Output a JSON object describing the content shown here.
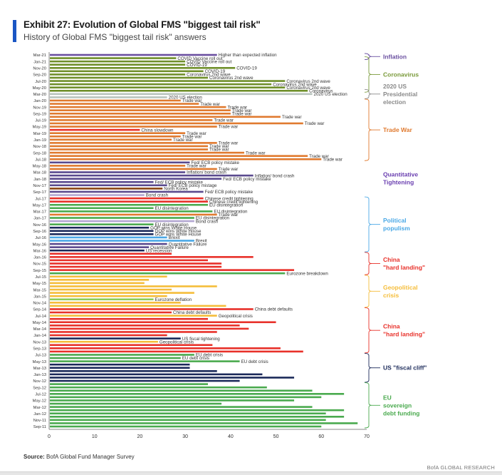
{
  "header": {
    "title": "Exhibit 27: Evolution of Global FMS \"biggest tail risk\"",
    "subtitle": "History of Global FMS \"biggest tail risk\" answers"
  },
  "footer": {
    "source_label": "Source:",
    "source_text": "BofA Global Fund Manager Survey",
    "brand": "BofA GLOBAL RESEARCH"
  },
  "colors": {
    "accent": "#1a56c4",
    "inflation": "#6a4fa0",
    "coronavirus": "#6f8f2a",
    "election": "#b8c4bd",
    "trade_war": "#e07a2f",
    "china_slowdown": "#e8312a",
    "qt": "#5a4a8e",
    "north_korea": "#8b4513",
    "bond_crash": "#b3a7d1",
    "eu": "#4aaa4e",
    "gop": "#1b2a5a",
    "brexit": "#4aa8e6",
    "quant_failure": "#5a4a8e",
    "china": "#e8312a",
    "geo": "#f5bd3a",
    "eurozone_deflation": "#8ccc5a",
    "us_fiscal": "#1b2a5a",
    "eu_debt": "#4aaa4e"
  },
  "chart_data": {
    "type": "bar",
    "orientation": "horizontal",
    "title": "Exhibit 27: Evolution of Global FMS \"biggest tail risk\"",
    "subtitle": "History of Global FMS \"biggest tail risk\" answers",
    "xlabel": "",
    "ylabel": "",
    "xlim": [
      0,
      70
    ],
    "xticks": [
      0,
      10,
      20,
      30,
      40,
      50,
      60,
      70
    ],
    "grid": false,
    "ytick_labels": [
      "Mar-21",
      "Jan-21",
      "Nov-20",
      "Sep-20",
      "Jul-20",
      "May-20",
      "Mar-20",
      "Jan-20",
      "Nov-19",
      "Sep-19",
      "Jul-19",
      "May-19",
      "Mar-19",
      "Jan-19",
      "Nov-18",
      "Sep-18",
      "Jul-18",
      "May-18",
      "Mar-18",
      "Jan-18",
      "Nov-17",
      "Sep-17",
      "Jul-17",
      "May-17",
      "Mar-17",
      "Jan-17",
      "Nov-16",
      "Sep-16",
      "Jul-16",
      "May-16",
      "Mar-16",
      "Jan-16",
      "Nov-15",
      "Sep-15",
      "Jul-15",
      "May-15",
      "Mar-15",
      "Jan-15",
      "Nov-14",
      "Sep-14",
      "Jul-14",
      "May-14",
      "Mar-14",
      "Jan-14",
      "Nov-13",
      "Sep-13",
      "Jul-13",
      "May-13",
      "Mar-13",
      "Jan-13",
      "Nov-12",
      "Sep-12",
      "Jul-12",
      "May-12",
      "Mar-12",
      "Jan-12",
      "Nov-11",
      "Sep-11"
    ],
    "bars": [
      {
        "month": "Mar-21",
        "value": 37,
        "risk": "inflation",
        "label": "Higher than expected inflation"
      },
      {
        "month": "Feb-21",
        "value": 28,
        "risk": "coronavirus",
        "label": "COVID Vaccine roll out"
      },
      {
        "month": "Jan-21",
        "value": 30,
        "risk": "coronavirus",
        "label": "COVID Vaccine roll out"
      },
      {
        "month": "Dec-20",
        "value": 30,
        "risk": "coronavirus",
        "label": "COVID-19"
      },
      {
        "month": "Nov-20",
        "value": 41,
        "risk": "coronavirus",
        "label": "COVID-19"
      },
      {
        "month": "Oct-20",
        "value": 34,
        "risk": "coronavirus",
        "label": "COVID-19"
      },
      {
        "month": "Sep-20",
        "value": 30,
        "risk": "coronavirus",
        "label": "Coronavirus 2nd wave"
      },
      {
        "month": "Aug-20",
        "value": 35,
        "risk": "coronavirus",
        "label": "Coronavirus 2nd wave"
      },
      {
        "month": "Jul-20",
        "value": 52,
        "risk": "coronavirus",
        "label": "Coronavirus 2nd wave"
      },
      {
        "month": "Jun-20",
        "value": 49,
        "risk": "coronavirus",
        "label": "Coronavirus 2nd wave"
      },
      {
        "month": "May-20",
        "value": 52,
        "risk": "coronavirus",
        "label": "Coronavirus 2nd wave"
      },
      {
        "month": "Apr-20",
        "value": 57,
        "risk": "coronavirus",
        "label": "Coronavirus"
      },
      {
        "month": "Mar-20",
        "value": 58,
        "risk": "election",
        "label": "2020 US election"
      },
      {
        "month": "Feb-20",
        "value": 26,
        "risk": "election",
        "label": "2020 US election"
      },
      {
        "month": "Jan-20",
        "value": 29,
        "risk": "trade_war",
        "label": "Trade war"
      },
      {
        "month": "Dec-19",
        "value": 33,
        "risk": "trade_war",
        "label": "Trade war"
      },
      {
        "month": "Nov-19",
        "value": 39,
        "risk": "trade_war",
        "label": "Trade war"
      },
      {
        "month": "Oct-19",
        "value": 40,
        "risk": "trade_war",
        "label": "Trade war"
      },
      {
        "month": "Sep-19",
        "value": 40,
        "risk": "trade_war",
        "label": "Trade war"
      },
      {
        "month": "Aug-19",
        "value": 51,
        "risk": "trade_war",
        "label": "Trade war"
      },
      {
        "month": "Jul-19",
        "value": 36,
        "risk": "trade_war",
        "label": "Trade war"
      },
      {
        "month": "Jun-19",
        "value": 56,
        "risk": "trade_war",
        "label": "Trade war"
      },
      {
        "month": "May-19",
        "value": 37,
        "risk": "trade_war",
        "label": "Trade war"
      },
      {
        "month": "Apr-19",
        "value": 20,
        "risk": "china_slowdown",
        "label": "China slowdown"
      },
      {
        "month": "Mar-19",
        "value": 30,
        "risk": "trade_war",
        "label": "Trade war"
      },
      {
        "month": "Feb-19",
        "value": 29,
        "risk": "trade_war",
        "label": "Trade war"
      },
      {
        "month": "Jan-19",
        "value": 27,
        "risk": "trade_war",
        "label": "Trade war"
      },
      {
        "month": "Dec-18",
        "value": 37,
        "risk": "trade_war",
        "label": "Trade war"
      },
      {
        "month": "Nov-18",
        "value": 35,
        "risk": "trade_war",
        "label": "Trade war"
      },
      {
        "month": "Oct-18",
        "value": 35,
        "risk": "trade_war",
        "label": "Trade war"
      },
      {
        "month": "Sep-18",
        "value": 43,
        "risk": "trade_war",
        "label": "Trade war"
      },
      {
        "month": "Aug-18",
        "value": 57,
        "risk": "trade_war",
        "label": "Trade war"
      },
      {
        "month": "Jul-18",
        "value": 60,
        "risk": "trade_war",
        "label": "Trade war"
      },
      {
        "month": "Jun-18",
        "value": 31,
        "risk": "qt",
        "label": "Fed/ ECB policy mistake"
      },
      {
        "month": "May-18",
        "value": 30,
        "risk": "trade_war",
        "label": "Trade war"
      },
      {
        "month": "Apr-18",
        "value": 37,
        "risk": "trade_war",
        "label": "Trade war"
      },
      {
        "month": "Mar-18",
        "value": 30,
        "risk": "qt",
        "label": "Inflation/ bond crash"
      },
      {
        "month": "Feb-18",
        "value": 45,
        "risk": "qt",
        "label": "Inflation/ bond crash"
      },
      {
        "month": "Jan-18",
        "value": 38,
        "risk": "qt",
        "label": "Fed/ ECB policy mistake"
      },
      {
        "month": "Dec-17",
        "value": 23,
        "risk": "qt",
        "label": "Fed/ ECB policy mistake"
      },
      {
        "month": "Nov-17",
        "value": 26,
        "risk": "qt",
        "label": "Fed/ ECB policy mistage"
      },
      {
        "month": "Oct-17",
        "value": 25,
        "risk": "north_korea",
        "label": "North Korea"
      },
      {
        "month": "Sep-17",
        "value": 34,
        "risk": "qt",
        "label": "Fed/ ECB policy mistake"
      },
      {
        "month": "Aug-17",
        "value": 21,
        "risk": "bond_crash",
        "label": "Bond crash"
      },
      {
        "month": "Jul-17",
        "value": 34,
        "risk": "china",
        "label": "Chinese credit tightening"
      },
      {
        "month": "Jun-17",
        "value": 35,
        "risk": "china",
        "label": "Chinese credit tightening"
      },
      {
        "month": "May-17",
        "value": 35,
        "risk": "eu",
        "label": "EU disintegration"
      },
      {
        "month": "Apr-17",
        "value": 23,
        "risk": "eu",
        "label": "EU disintegration"
      },
      {
        "month": "Mar-17",
        "value": 36,
        "risk": "eu",
        "label": "EU disintegration"
      },
      {
        "month": "Feb-17",
        "value": 37,
        "risk": "trade_war",
        "label": "Trade war"
      },
      {
        "month": "Jan-17",
        "value": 32,
        "risk": "eu",
        "label": "EU disintegration"
      },
      {
        "month": "Dec-16",
        "value": 32,
        "risk": "bond_crash",
        "label": "Bond crash"
      },
      {
        "month": "Nov-16",
        "value": 23,
        "risk": "eu",
        "label": "EU disintegration"
      },
      {
        "month": "Oct-16",
        "value": 22,
        "risk": "gop",
        "label": "GOP wins White House"
      },
      {
        "month": "Sep-16",
        "value": 23,
        "risk": "gop",
        "label": "GOP wins White House"
      },
      {
        "month": "Aug-16",
        "value": 23,
        "risk": "gop",
        "label": "GOP wins White House"
      },
      {
        "month": "Jul-16",
        "value": 26,
        "risk": "brexit",
        "label": "Brexit"
      },
      {
        "month": "Jun-16",
        "value": 32,
        "risk": "brexit",
        "label": "Brexit"
      },
      {
        "month": "May-16",
        "value": 26,
        "risk": "quant_failure",
        "label": "Quantitative Failure"
      },
      {
        "month": "Apr-16",
        "value": 22,
        "risk": "quant_failure",
        "label": "Quantitative Failure"
      },
      {
        "month": "Mar-16",
        "value": 21,
        "risk": "gop",
        "label": "US recession"
      },
      {
        "month": "Feb-16",
        "value": 27,
        "risk": "china",
        "label": ""
      },
      {
        "month": "Jan-16",
        "value": 45,
        "risk": "china",
        "label": ""
      },
      {
        "month": "Dec-15",
        "value": 35,
        "risk": "china",
        "label": ""
      },
      {
        "month": "Nov-15",
        "value": 38,
        "risk": "china",
        "label": ""
      },
      {
        "month": "Oct-15",
        "value": 38,
        "risk": "china",
        "label": ""
      },
      {
        "month": "Sep-15",
        "value": 54,
        "risk": "china",
        "label": ""
      },
      {
        "month": "Aug-15",
        "value": 52,
        "risk": "eu",
        "label": "Eurozone breakdown"
      },
      {
        "month": "Jul-15",
        "value": 26,
        "risk": "geo",
        "label": ""
      },
      {
        "month": "Jun-15",
        "value": 22,
        "risk": "geo",
        "label": ""
      },
      {
        "month": "May-15",
        "value": 21,
        "risk": "geo",
        "label": ""
      },
      {
        "month": "Apr-15",
        "value": 37,
        "risk": "geo",
        "label": ""
      },
      {
        "month": "Mar-15",
        "value": 27,
        "risk": "geo",
        "label": ""
      },
      {
        "month": "Feb-15",
        "value": 32,
        "risk": "geo",
        "label": ""
      },
      {
        "month": "Jan-15",
        "value": 26,
        "risk": "geo",
        "label": ""
      },
      {
        "month": "Dec-14",
        "value": 23,
        "risk": "eurozone_deflation",
        "label": "Eurozone deflation"
      },
      {
        "month": "Nov-14",
        "value": 29,
        "risk": "geo",
        "label": ""
      },
      {
        "month": "Oct-14",
        "value": 39,
        "risk": "geo",
        "label": ""
      },
      {
        "month": "Sep-14",
        "value": 45,
        "risk": "china",
        "label": "China debt defaults"
      },
      {
        "month": "Aug-14",
        "value": 27,
        "risk": "china",
        "label": "China debt defaults"
      },
      {
        "month": "Jul-14",
        "value": 37,
        "risk": "geo",
        "label": "Geopolitical crisis"
      },
      {
        "month": "Jun-14",
        "value": 35,
        "risk": "china",
        "label": ""
      },
      {
        "month": "May-14",
        "value": 50,
        "risk": "china",
        "label": ""
      },
      {
        "month": "Apr-14",
        "value": 42,
        "risk": "china",
        "label": ""
      },
      {
        "month": "Mar-14",
        "value": 44,
        "risk": "china",
        "label": ""
      },
      {
        "month": "Feb-14",
        "value": 37,
        "risk": "china",
        "label": ""
      },
      {
        "month": "Jan-14",
        "value": 26,
        "risk": "china",
        "label": ""
      },
      {
        "month": "Dec-13",
        "value": 29,
        "risk": "us_fiscal",
        "label": "US fiscal tightening"
      },
      {
        "month": "Nov-13",
        "value": 24,
        "risk": "geo",
        "label": "Geopolitical crisis"
      },
      {
        "month": "Oct-13",
        "value": 36,
        "risk": "china",
        "label": ""
      },
      {
        "month": "Sep-13",
        "value": 51,
        "risk": "china",
        "label": ""
      },
      {
        "month": "Aug-13",
        "value": 56,
        "risk": "china",
        "label": ""
      },
      {
        "month": "Jul-13",
        "value": 32,
        "risk": "eu_debt",
        "label": "EU debt crisis"
      },
      {
        "month": "Jun-13",
        "value": 29,
        "risk": "eu_debt",
        "label": "EU debt crisis"
      },
      {
        "month": "May-13",
        "value": 42,
        "risk": "eu_debt",
        "label": "EU debt crisis"
      },
      {
        "month": "Apr-13",
        "value": 31,
        "risk": "us_fiscal",
        "label": ""
      },
      {
        "month": "Mar-13",
        "value": 31,
        "risk": "us_fiscal",
        "label": ""
      },
      {
        "month": "Feb-13",
        "value": 37,
        "risk": "us_fiscal",
        "label": ""
      },
      {
        "month": "Jan-13",
        "value": 47,
        "risk": "us_fiscal",
        "label": ""
      },
      {
        "month": "Dec-12",
        "value": 54,
        "risk": "us_fiscal",
        "label": ""
      },
      {
        "month": "Nov-12",
        "value": 42,
        "risk": "us_fiscal",
        "label": ""
      },
      {
        "month": "Oct-12",
        "value": 35,
        "risk": "eu_debt",
        "label": ""
      },
      {
        "month": "Sep-12",
        "value": 48,
        "risk": "eu_debt",
        "label": ""
      },
      {
        "month": "Aug-12",
        "value": 58,
        "risk": "eu_debt",
        "label": ""
      },
      {
        "month": "Jul-12",
        "value": 65,
        "risk": "eu_debt",
        "label": ""
      },
      {
        "month": "Jun-12",
        "value": 60,
        "risk": "eu_debt",
        "label": ""
      },
      {
        "month": "May-12",
        "value": 54,
        "risk": "eu_debt",
        "label": ""
      },
      {
        "month": "Apr-12",
        "value": 38,
        "risk": "eu_debt",
        "label": ""
      },
      {
        "month": "Mar-12",
        "value": 58,
        "risk": "eu_debt",
        "label": ""
      },
      {
        "month": "Feb-12",
        "value": 65,
        "risk": "eu_debt",
        "label": ""
      },
      {
        "month": "Jan-12",
        "value": 61,
        "risk": "eu_debt",
        "label": ""
      },
      {
        "month": "Dec-11",
        "value": 65,
        "risk": "eu_debt",
        "label": ""
      },
      {
        "month": "Nov-11",
        "value": 61,
        "risk": "eu_debt",
        "label": ""
      },
      {
        "month": "Oct-11",
        "value": 68,
        "risk": "eu_debt",
        "label": ""
      },
      {
        "month": "Sep-11",
        "value": 60,
        "risk": "eu_debt",
        "label": ""
      }
    ],
    "groups": [
      {
        "label": "Inflation",
        "color": "#6a4fa0",
        "from": "Mar-21",
        "to": "Feb-21"
      },
      {
        "label": "Coronavirus",
        "color": "#7a9a3a",
        "from": "Feb-21",
        "to": "Apr-20"
      },
      {
        "label": "2020 US Presidential election",
        "color": "#8a8a8a",
        "from": "Apr-20",
        "to": "Feb-20"
      },
      {
        "label": "Trade War",
        "color": "#e07a2f",
        "from": "Jan-20",
        "to": "Jul-18"
      },
      {
        "label": "Quantitative Tightening",
        "color": "#6a3fb0",
        "from": null,
        "to": null
      },
      {
        "label": "Political populism",
        "color": "#4aa8e6",
        "from": "Jul-17",
        "to": "Mar-16"
      },
      {
        "label": "China \"hard landing\"",
        "color": "#e8312a",
        "from": "Feb-16",
        "to": "Aug-15"
      },
      {
        "label": "Geopolitical crisis",
        "color": "#f5bd3a",
        "from": "Jul-15",
        "to": "Oct-14"
      },
      {
        "label": "China \"hard landing\"",
        "color": "#e8312a",
        "from": "Sep-14",
        "to": "Aug-13"
      },
      {
        "label": "US \"fiscal cliff\"",
        "color": "#1b2a5a",
        "from": "Jul-13",
        "to": "Nov-12"
      },
      {
        "label": "EU sovereign debt funding",
        "color": "#4aaa4e",
        "from": "Oct-12",
        "to": "Sep-11"
      }
    ]
  }
}
